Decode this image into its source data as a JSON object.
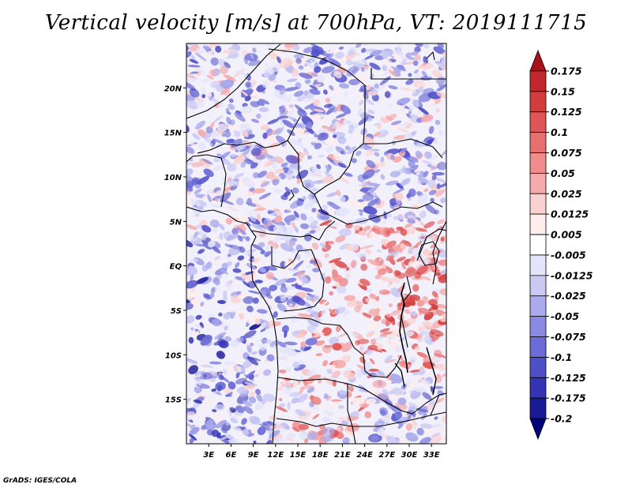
{
  "title": "Vertical velocity [m/s] at 700hPa, VT: 2019111715",
  "credit": "GrADS: IGES/COLA",
  "map": {
    "lon_range": [
      0,
      35
    ],
    "lat_range": [
      -20,
      25
    ],
    "lon_ticks": [
      "3E",
      "6E",
      "9E",
      "12E",
      "15E",
      "18E",
      "21E",
      "24E",
      "27E",
      "30E",
      "33E"
    ],
    "lat_ticks": [
      "20N",
      "15N",
      "10N",
      "5N",
      "EQ",
      "5S",
      "10S",
      "15S"
    ]
  },
  "colorbar": {
    "labels": [
      "0.175",
      "0.15",
      "0.125",
      "0.1",
      "0.075",
      "0.05",
      "0.025",
      "0.0125",
      "0.005",
      "-0.005",
      "-0.0125",
      "-0.025",
      "-0.05",
      "-0.075",
      "-0.1",
      "-0.125",
      "-0.175",
      "-0.2"
    ],
    "colors": [
      "#a8111a",
      "#c1272d",
      "#d43d3d",
      "#e05555",
      "#e86f6f",
      "#f08c8c",
      "#f5abab",
      "#fad0d0",
      "#fdeded",
      "#ffffff",
      "#e4e4fb",
      "#c9c9f4",
      "#aaaaec",
      "#8a8ae2",
      "#6c6cd6",
      "#4f4fc8",
      "#3333b3",
      "#1a1a96",
      "#00007a"
    ]
  }
}
